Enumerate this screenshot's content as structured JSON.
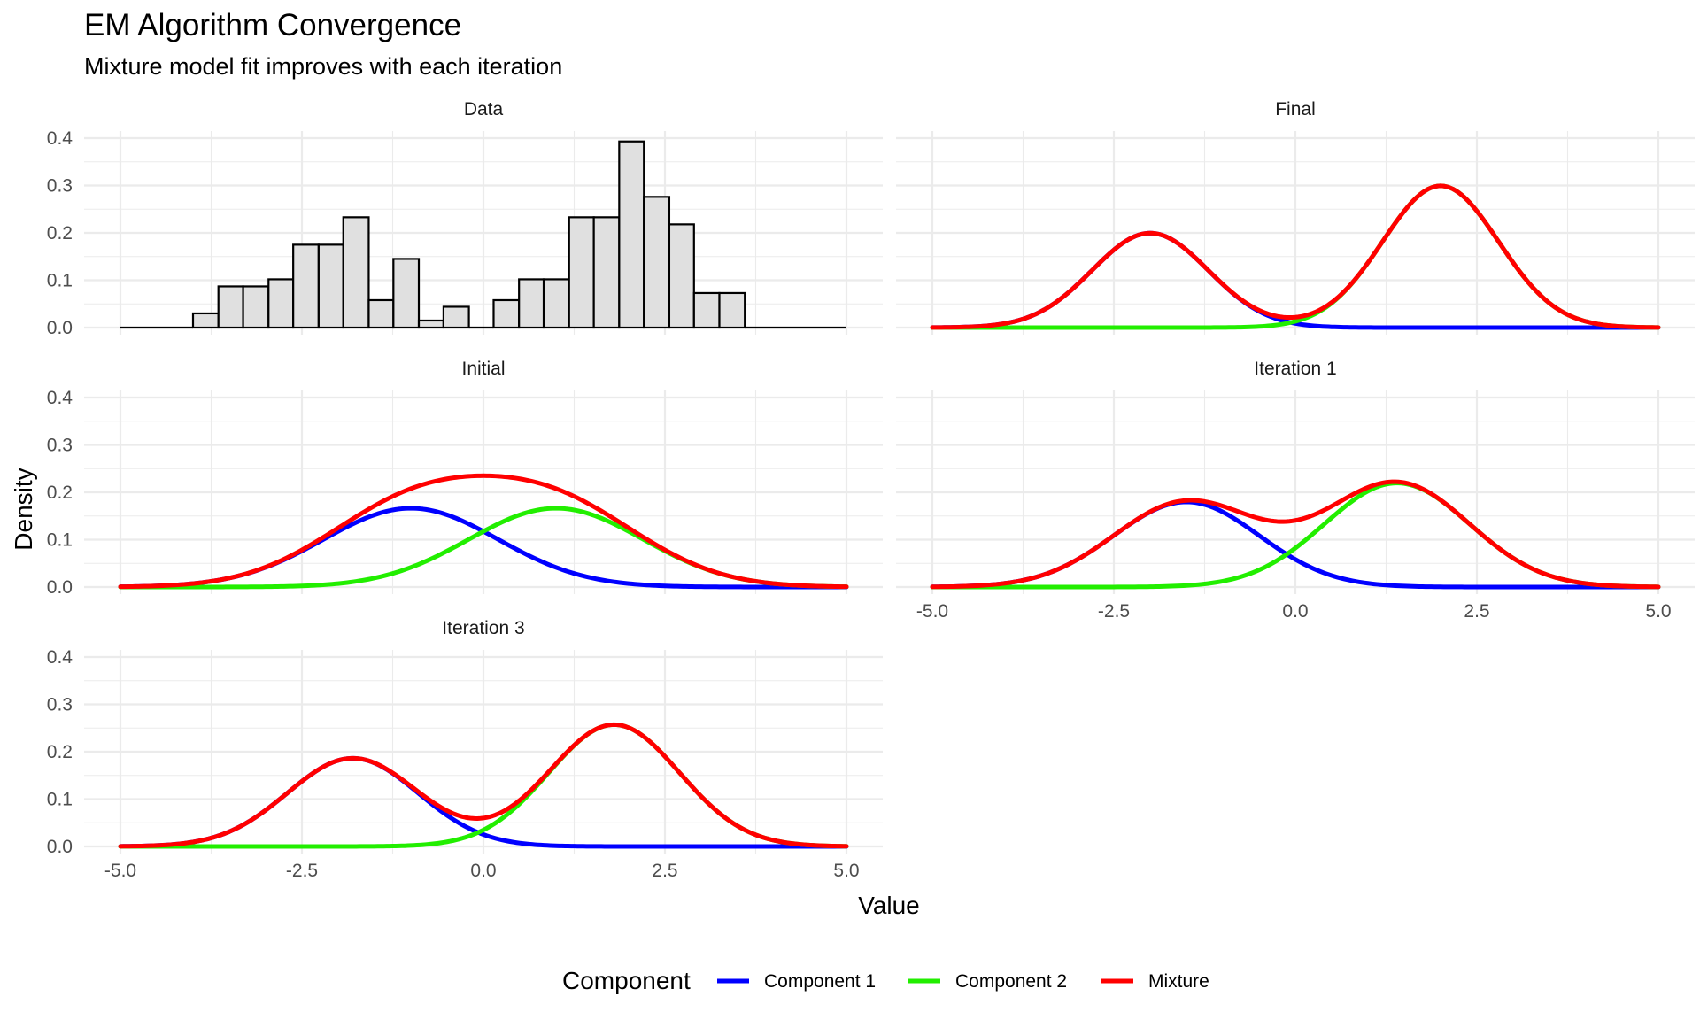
{
  "title": "EM Algorithm Convergence",
  "subtitle": "Mixture model fit improves with each iteration",
  "chart_data": {
    "type": "line",
    "title": "EM Algorithm Convergence",
    "subtitle": "Mixture model fit improves with each iteration",
    "xlabel": "Value",
    "ylabel": "Density",
    "xlim": [
      -5,
      5
    ],
    "ylim": [
      0,
      0.4
    ],
    "x_ticks": [
      "-5.0",
      "-2.5",
      "0.0",
      "2.5",
      "5.0"
    ],
    "y_ticks": [
      "0.0",
      "0.1",
      "0.2",
      "0.3",
      "0.4"
    ],
    "grid": true,
    "legend": {
      "title": "Component",
      "position": "bottom",
      "entries": [
        {
          "name": "Component 1",
          "color": "#0000ff"
        },
        {
          "name": "Component 2",
          "color": "#22ee00"
        },
        {
          "name": "Mixture",
          "color": "#ff0000"
        }
      ]
    },
    "panels": [
      {
        "label": "Data",
        "type": "histogram",
        "bins": [
          {
            "x0": -5.0,
            "x1": -4.0,
            "density": 0.0
          },
          {
            "x0": -4.0,
            "x1": -3.65,
            "density": 0.03
          },
          {
            "x0": -3.65,
            "x1": -3.31,
            "density": 0.087
          },
          {
            "x0": -3.31,
            "x1": -2.96,
            "density": 0.087
          },
          {
            "x0": -2.96,
            "x1": -2.62,
            "density": 0.102
          },
          {
            "x0": -2.62,
            "x1": -2.27,
            "density": 0.175
          },
          {
            "x0": -2.27,
            "x1": -1.93,
            "density": 0.175
          },
          {
            "x0": -1.93,
            "x1": -1.58,
            "density": 0.233
          },
          {
            "x0": -1.58,
            "x1": -1.24,
            "density": 0.058
          },
          {
            "x0": -1.24,
            "x1": -0.89,
            "density": 0.145
          },
          {
            "x0": -0.89,
            "x1": -0.55,
            "density": 0.015
          },
          {
            "x0": -0.55,
            "x1": -0.2,
            "density": 0.044
          },
          {
            "x0": -0.2,
            "x1": 0.14,
            "density": 0.0
          },
          {
            "x0": 0.14,
            "x1": 0.49,
            "density": 0.058
          },
          {
            "x0": 0.49,
            "x1": 0.83,
            "density": 0.102
          },
          {
            "x0": 0.83,
            "x1": 1.18,
            "density": 0.102
          },
          {
            "x0": 1.18,
            "x1": 1.52,
            "density": 0.233
          },
          {
            "x0": 1.52,
            "x1": 1.87,
            "density": 0.233
          },
          {
            "x0": 1.87,
            "x1": 2.21,
            "density": 0.393
          },
          {
            "x0": 2.21,
            "x1": 2.56,
            "density": 0.276
          },
          {
            "x0": 2.56,
            "x1": 2.9,
            "density": 0.218
          },
          {
            "x0": 2.9,
            "x1": 3.25,
            "density": 0.073
          },
          {
            "x0": 3.25,
            "x1": 3.6,
            "density": 0.073
          },
          {
            "x0": 3.6,
            "x1": 5.0,
            "density": 0.0
          }
        ]
      },
      {
        "label": "Final",
        "type": "density",
        "components": [
          {
            "series": "Component 1",
            "weight": 0.4,
            "mean": -2.0,
            "sd": 0.8
          },
          {
            "series": "Component 2",
            "weight": 0.6,
            "mean": 2.0,
            "sd": 0.8
          }
        ]
      },
      {
        "label": "Initial",
        "type": "density",
        "components": [
          {
            "series": "Component 1",
            "weight": 0.5,
            "mean": -1.0,
            "sd": 1.2
          },
          {
            "series": "Component 2",
            "weight": 0.5,
            "mean": 1.0,
            "sd": 1.2
          }
        ]
      },
      {
        "label": "Iteration 1",
        "type": "density",
        "components": [
          {
            "series": "Component 1",
            "weight": 0.45,
            "mean": -1.5,
            "sd": 1.0
          },
          {
            "series": "Component 2",
            "weight": 0.55,
            "mean": 1.4,
            "sd": 1.0
          }
        ]
      },
      {
        "label": "Iteration 3",
        "type": "density",
        "components": [
          {
            "series": "Component 1",
            "weight": 0.42,
            "mean": -1.8,
            "sd": 0.9
          },
          {
            "series": "Component 2",
            "weight": 0.58,
            "mean": 1.8,
            "sd": 0.9
          }
        ]
      }
    ]
  }
}
